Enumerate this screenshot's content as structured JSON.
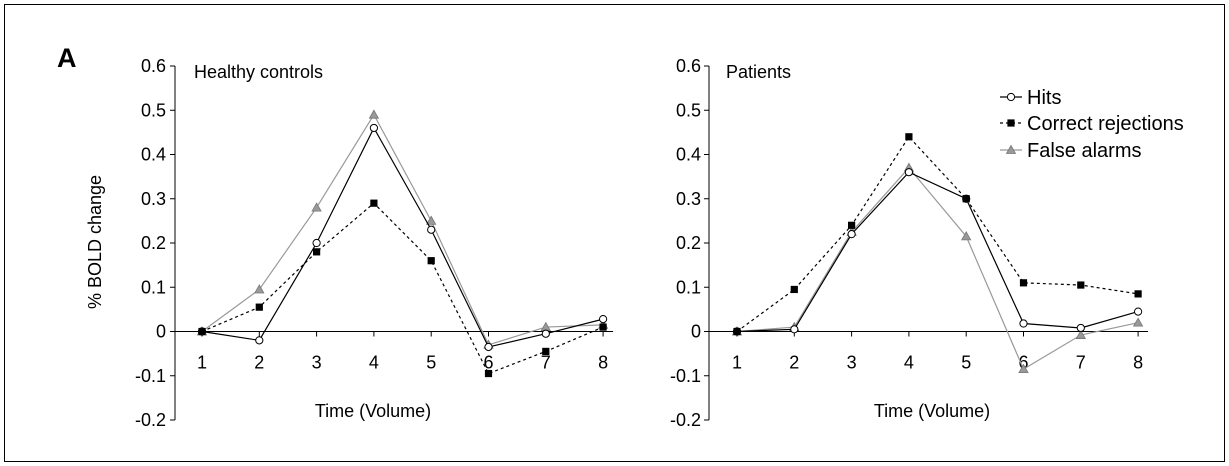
{
  "panel_letter": "A",
  "ylabel": "% BOLD change",
  "colors": {
    "hits": "#000000",
    "correct_rejections": "#000000",
    "false_alarms": "#999999"
  },
  "legend": {
    "placement": "top-right",
    "entries": [
      "Hits",
      "Correct rejections",
      "False alarms"
    ]
  },
  "chart_data": [
    {
      "type": "line",
      "title": "Healthy controls",
      "xlabel": "Time (Volume)",
      "ylabel": "% BOLD change",
      "x": [
        1,
        2,
        3,
        4,
        5,
        6,
        7,
        8
      ],
      "xticks": [
        "1",
        "2",
        "3",
        "4",
        "5",
        "6",
        "7",
        "8"
      ],
      "ylim": [
        -0.2,
        0.6
      ],
      "yticks": [
        "-0.2",
        "-0.1",
        "0",
        "0.1",
        "0.2",
        "0.3",
        "0.4",
        "0.5",
        "0.6"
      ],
      "series": [
        {
          "name": "Hits",
          "values": [
            0,
            -0.02,
            0.2,
            0.46,
            0.23,
            -0.035,
            -0.005,
            0.028
          ]
        },
        {
          "name": "Correct rejections",
          "values": [
            0,
            0.055,
            0.18,
            0.29,
            0.16,
            -0.095,
            -0.045,
            0.01
          ]
        },
        {
          "name": "False alarms",
          "values": [
            0,
            0.095,
            0.28,
            0.49,
            0.25,
            -0.03,
            0.01,
            0.015
          ]
        }
      ]
    },
    {
      "type": "line",
      "title": "Patients",
      "xlabel": "Time (Volume)",
      "ylabel": "",
      "x": [
        1,
        2,
        3,
        4,
        5,
        6,
        7,
        8
      ],
      "xticks": [
        "1",
        "2",
        "3",
        "4",
        "5",
        "6",
        "7",
        "8"
      ],
      "ylim": [
        -0.2,
        0.6
      ],
      "yticks": [
        "-0.2",
        "-0.1",
        "0",
        "0.1",
        "0.2",
        "0.3",
        "0.4",
        "0.5",
        "0.6"
      ],
      "series": [
        {
          "name": "Hits",
          "values": [
            0,
            0.005,
            0.22,
            0.36,
            0.3,
            0.018,
            0.008,
            0.045
          ]
        },
        {
          "name": "Correct rejections",
          "values": [
            0,
            0.095,
            0.24,
            0.44,
            0.3,
            0.11,
            0.105,
            0.085
          ]
        },
        {
          "name": "False alarms",
          "values": [
            0,
            0.01,
            0.225,
            0.37,
            0.215,
            -0.085,
            -0.008,
            0.02
          ]
        }
      ]
    }
  ]
}
